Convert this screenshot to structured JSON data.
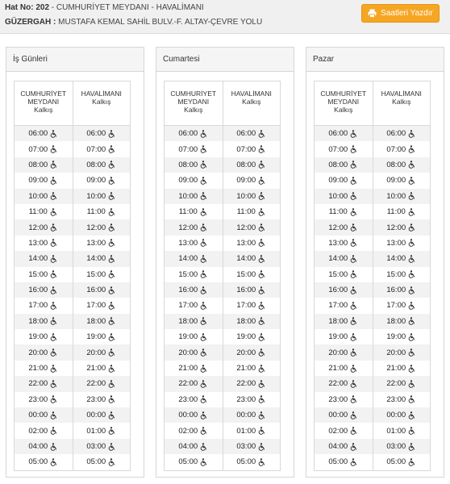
{
  "header": {
    "line_no_label": "Hat No: 202",
    "line_no_rest": " - CUMHURİYET MEYDANI - HAVALİMANI",
    "route_label": "GÜZERGAH :",
    "route_rest": " MUSTAFA KEMAL SAHİL BULV.-F. ALTAY-ÇEVRE YOLU",
    "print_button": "Saatleri Yazdır"
  },
  "columns": {
    "left_title": "CUMHURİYET MEYDANI",
    "left_sub": "Kalkış",
    "right_title": "HAVALİMANI",
    "right_sub": "Kalkış"
  },
  "panels": [
    {
      "title": "İş Günleri",
      "rows": [
        [
          "06:00",
          "06:00"
        ],
        [
          "07:00",
          "07:00"
        ],
        [
          "08:00",
          "08:00"
        ],
        [
          "09:00",
          "09:00"
        ],
        [
          "10:00",
          "10:00"
        ],
        [
          "11:00",
          "11:00"
        ],
        [
          "12:00",
          "12:00"
        ],
        [
          "13:00",
          "13:00"
        ],
        [
          "14:00",
          "14:00"
        ],
        [
          "15:00",
          "15:00"
        ],
        [
          "16:00",
          "16:00"
        ],
        [
          "17:00",
          "17:00"
        ],
        [
          "18:00",
          "18:00"
        ],
        [
          "19:00",
          "19:00"
        ],
        [
          "20:00",
          "20:00"
        ],
        [
          "21:00",
          "21:00"
        ],
        [
          "22:00",
          "22:00"
        ],
        [
          "23:00",
          "23:00"
        ],
        [
          "00:00",
          "00:00"
        ],
        [
          "02:00",
          "01:00"
        ],
        [
          "04:00",
          "03:00"
        ],
        [
          "05:00",
          "05:00"
        ]
      ]
    },
    {
      "title": "Cumartesi",
      "rows": [
        [
          "06:00",
          "06:00"
        ],
        [
          "07:00",
          "07:00"
        ],
        [
          "08:00",
          "08:00"
        ],
        [
          "09:00",
          "09:00"
        ],
        [
          "10:00",
          "10:00"
        ],
        [
          "11:00",
          "11:00"
        ],
        [
          "12:00",
          "12:00"
        ],
        [
          "13:00",
          "13:00"
        ],
        [
          "14:00",
          "14:00"
        ],
        [
          "15:00",
          "15:00"
        ],
        [
          "16:00",
          "16:00"
        ],
        [
          "17:00",
          "17:00"
        ],
        [
          "18:00",
          "18:00"
        ],
        [
          "19:00",
          "19:00"
        ],
        [
          "20:00",
          "20:00"
        ],
        [
          "21:00",
          "21:00"
        ],
        [
          "22:00",
          "22:00"
        ],
        [
          "23:00",
          "23:00"
        ],
        [
          "00:00",
          "00:00"
        ],
        [
          "02:00",
          "01:00"
        ],
        [
          "04:00",
          "03:00"
        ],
        [
          "05:00",
          "05:00"
        ]
      ]
    },
    {
      "title": "Pazar",
      "rows": [
        [
          "06:00",
          "06:00"
        ],
        [
          "07:00",
          "07:00"
        ],
        [
          "08:00",
          "08:00"
        ],
        [
          "09:00",
          "09:00"
        ],
        [
          "10:00",
          "10:00"
        ],
        [
          "11:00",
          "11:00"
        ],
        [
          "12:00",
          "12:00"
        ],
        [
          "13:00",
          "13:00"
        ],
        [
          "14:00",
          "14:00"
        ],
        [
          "15:00",
          "15:00"
        ],
        [
          "16:00",
          "16:00"
        ],
        [
          "17:00",
          "17:00"
        ],
        [
          "18:00",
          "18:00"
        ],
        [
          "19:00",
          "19:00"
        ],
        [
          "20:00",
          "20:00"
        ],
        [
          "21:00",
          "21:00"
        ],
        [
          "22:00",
          "22:00"
        ],
        [
          "23:00",
          "23:00"
        ],
        [
          "00:00",
          "00:00"
        ],
        [
          "02:00",
          "01:00"
        ],
        [
          "04:00",
          "03:00"
        ],
        [
          "05:00",
          "05:00"
        ]
      ]
    }
  ],
  "icons": {
    "accessibility": "wheelchair-icon",
    "print": "print-icon"
  },
  "colors": {
    "print_button": "#f5a623",
    "row_stripe": "#f2f2f2"
  }
}
